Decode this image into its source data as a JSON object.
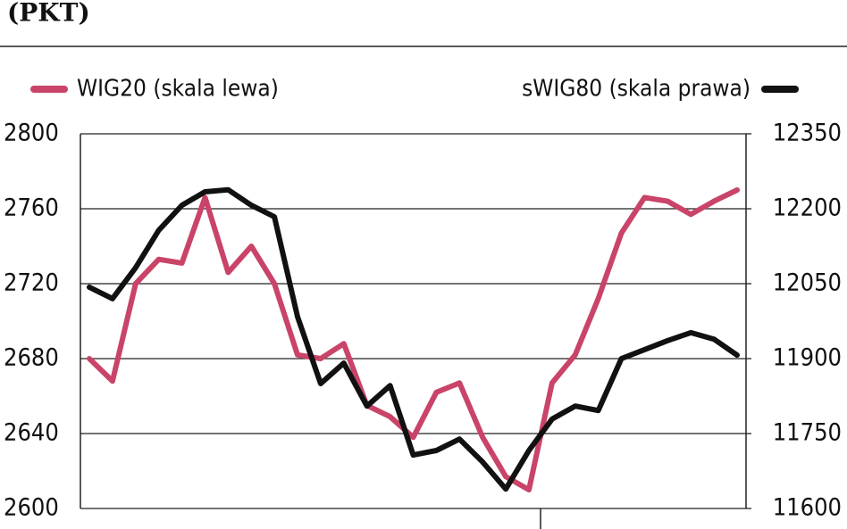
{
  "chart_data": {
    "type": "line",
    "title": "(PKT)",
    "series": [
      {
        "name": "WIG20 (skala lewa)",
        "color": "#c94468",
        "values": [
          2680,
          2668,
          2720,
          2733,
          2731,
          2766,
          2726,
          2740,
          2720,
          2682,
          2680,
          2688,
          2655,
          2649,
          2638,
          2662,
          2667,
          2638,
          2617,
          2610,
          2667,
          2682,
          2712,
          2747,
          2766,
          2764,
          2757,
          2764,
          2770
        ]
      },
      {
        "name": "sWIG80 (skala prawa)",
        "color": "#111111",
        "axis": "y2",
        "values": [
          12043,
          12020,
          12082,
          12157,
          12207,
          12234,
          12238,
          12207,
          12184,
          11984,
          11850,
          11891,
          11805,
          11846,
          11707,
          11716,
          11739,
          11693,
          11639,
          11716,
          11779,
          11805,
          11796,
          11900,
          11918,
          11936,
          11952,
          11939,
          11907
        ]
      }
    ],
    "ylim": [
      2600,
      2800
    ],
    "yticks": [
      2600,
      2640,
      2680,
      2720,
      2760,
      2800
    ],
    "y2lim": [
      11600,
      12350
    ],
    "y2ticks": [
      11600,
      11750,
      11900,
      12050,
      12200,
      12350
    ],
    "grid": true
  }
}
